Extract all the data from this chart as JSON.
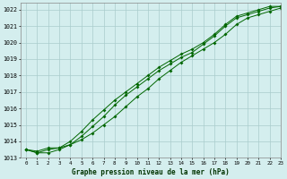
{
  "title": "Graphe pression niveau de la mer (hPa)",
  "bg_color": "#d4eeee",
  "line_color": "#006600",
  "grid_color": "#aacccc",
  "xlim": [
    -0.5,
    23
  ],
  "ylim": [
    1013,
    1022.4
  ],
  "yticks": [
    1013,
    1014,
    1015,
    1016,
    1017,
    1018,
    1019,
    1020,
    1021,
    1022
  ],
  "xticks": [
    0,
    1,
    2,
    3,
    4,
    5,
    6,
    7,
    8,
    9,
    10,
    11,
    12,
    13,
    14,
    15,
    16,
    17,
    18,
    19,
    20,
    21,
    22,
    23
  ],
  "line1_x": [
    0,
    1,
    2,
    3,
    4,
    5,
    6,
    7,
    8,
    9,
    10,
    11,
    12,
    13,
    14,
    15,
    16,
    17,
    18,
    19,
    20,
    21,
    22,
    23
  ],
  "line1_y": [
    1013.5,
    1013.4,
    1013.6,
    1013.6,
    1013.8,
    1014.1,
    1014.5,
    1015.0,
    1015.5,
    1016.1,
    1016.7,
    1017.2,
    1017.8,
    1018.3,
    1018.8,
    1019.2,
    1019.6,
    1020.0,
    1020.5,
    1021.1,
    1021.5,
    1021.7,
    1021.9,
    1022.1
  ],
  "line2_x": [
    0,
    1,
    2,
    3,
    4,
    5,
    6,
    7,
    8,
    9,
    10,
    11,
    12,
    13,
    14,
    15,
    16,
    17,
    18,
    19,
    20,
    21,
    22,
    23
  ],
  "line2_y": [
    1013.5,
    1013.3,
    1013.3,
    1013.5,
    1013.8,
    1014.3,
    1014.9,
    1015.5,
    1016.2,
    1016.8,
    1017.3,
    1017.8,
    1018.3,
    1018.7,
    1019.1,
    1019.4,
    1019.9,
    1020.4,
    1021.0,
    1021.5,
    1021.7,
    1021.9,
    1022.1,
    1022.2
  ],
  "line3_x": [
    0,
    1,
    2,
    3,
    4,
    5,
    6,
    7,
    8,
    9,
    10,
    11,
    12,
    13,
    14,
    15,
    16,
    17,
    18,
    19,
    20,
    21,
    22,
    23
  ],
  "line3_y": [
    1013.5,
    1013.3,
    1013.5,
    1013.6,
    1014.0,
    1014.6,
    1015.3,
    1015.9,
    1016.5,
    1017.0,
    1017.5,
    1018.0,
    1018.5,
    1018.9,
    1019.3,
    1019.6,
    1020.0,
    1020.5,
    1021.1,
    1021.6,
    1021.8,
    1022.0,
    1022.2,
    1022.2
  ]
}
